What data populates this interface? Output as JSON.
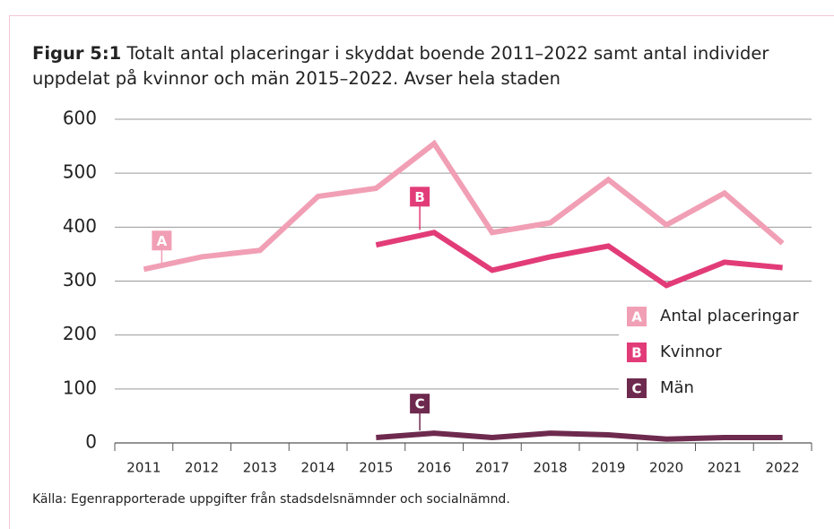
{
  "chart_data": {
    "type": "line",
    "title_label": "Figur 5:1",
    "title": "Totalt antal placeringar i skyddat boende 2011–2022 samt antal individer uppdelat på kvinnor och män 2015–2022. Avser hela staden",
    "source": "Källa: Egenrapporterade uppgifter från stadsdelsnämnder och socialnämnd.",
    "categories": [
      "2011",
      "2012",
      "2013",
      "2014",
      "2015",
      "2016",
      "2017",
      "2018",
      "2019",
      "2020",
      "2021",
      "2022"
    ],
    "series": [
      {
        "name": "Antal placeringar",
        "marker": "A",
        "color": "#f19fb5",
        "values": [
          322,
          345,
          357,
          457,
          472,
          555,
          390,
          408,
          488,
          404,
          463,
          370
        ]
      },
      {
        "name": "Kvinnor",
        "marker": "B",
        "color": "#e23c78",
        "values": [
          null,
          null,
          null,
          null,
          367,
          390,
          320,
          345,
          365,
          292,
          335,
          325
        ]
      },
      {
        "name": "Män",
        "marker": "C",
        "color": "#6e2a4e",
        "values": [
          null,
          null,
          null,
          null,
          10,
          18,
          10,
          18,
          15,
          7,
          10,
          10
        ]
      }
    ],
    "ylim": [
      0,
      600
    ],
    "yticks": [
      0,
      100,
      200,
      300,
      400,
      500,
      600
    ],
    "grid": true,
    "legend": "right"
  }
}
